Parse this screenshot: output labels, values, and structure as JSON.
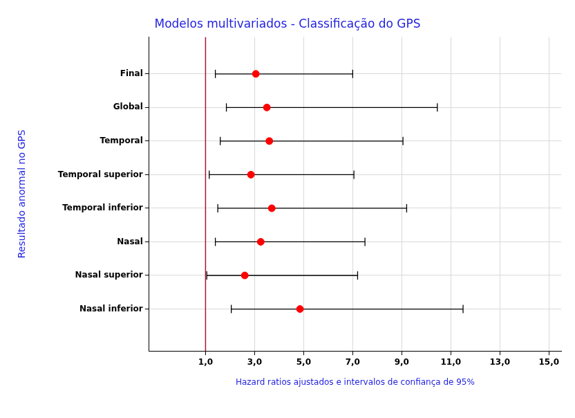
{
  "chart_data": {
    "type": "forest",
    "orientation": "horizontal",
    "title": "Modelos multivariados - Classificação do GPS",
    "xlabel": "Hazard ratios ajustados e intervalos de confiança de 95%",
    "ylabel": "Resultado anormal no GPS",
    "categories": [
      "Final",
      "Global",
      "Temporal",
      "Temporal superior",
      "Temporal inferior",
      "Nasal",
      "Nasal superior",
      "Nasal inferior"
    ],
    "values": [
      3.05,
      3.5,
      3.6,
      2.85,
      3.7,
      3.25,
      2.6,
      4.85
    ],
    "ci_lower": [
      1.4,
      1.85,
      1.6,
      1.15,
      1.5,
      1.4,
      1.05,
      2.05
    ],
    "ci_upper": [
      7.0,
      10.45,
      9.05,
      7.05,
      9.2,
      7.5,
      7.2,
      11.5
    ],
    "color": "#ff0000",
    "marker": "circle",
    "reference_line": {
      "value": 1.0,
      "color": "#b0103a"
    },
    "xlim": [
      -1.3,
      15.5
    ],
    "xticks": [
      {
        "value": 1,
        "label": "1,0"
      },
      {
        "value": 3,
        "label": "3,0"
      },
      {
        "value": 5,
        "label": "5,0"
      },
      {
        "value": 7,
        "label": "7,0"
      },
      {
        "value": 9,
        "label": "9,0"
      },
      {
        "value": 11,
        "label": "11,0"
      },
      {
        "value": 13,
        "label": "13,0"
      },
      {
        "value": 15,
        "label": "15,0"
      }
    ],
    "grid": true
  }
}
